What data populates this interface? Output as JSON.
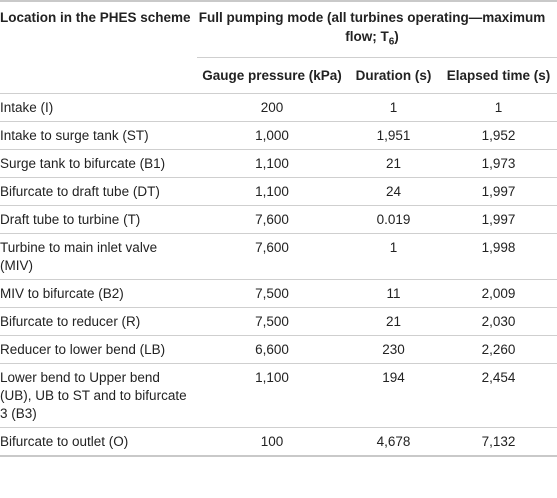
{
  "table": {
    "header": {
      "location": "Location in the PHES scheme",
      "mode_main": "Full pumping mode (all turbines operating—maximum flow; T",
      "mode_sub": "6",
      "mode_end": ")",
      "gauge": "Gauge pressure (kPa)",
      "duration": "Duration (s)",
      "elapsed": "Elapsed time (s)"
    },
    "rows": [
      {
        "location": "Intake (I)",
        "gauge": "200",
        "duration": "1",
        "elapsed": "1"
      },
      {
        "location": "Intake to surge tank (ST)",
        "gauge": "1,000",
        "duration": "1,951",
        "elapsed": "1,952"
      },
      {
        "location": "Surge tank to bifurcate (B1)",
        "gauge": "1,100",
        "duration": "21",
        "elapsed": "1,973"
      },
      {
        "location": "Bifurcate to draft tube (DT)",
        "gauge": "1,100",
        "duration": "24",
        "elapsed": "1,997"
      },
      {
        "location": "Draft tube to turbine (T)",
        "gauge": "7,600",
        "duration": "0.019",
        "elapsed": "1,997"
      },
      {
        "location": "Turbine to main inlet valve (MIV)",
        "gauge": "7,600",
        "duration": "1",
        "elapsed": "1,998"
      },
      {
        "location": "MIV to bifurcate (B2)",
        "gauge": "7,500",
        "duration": "11",
        "elapsed": "2,009"
      },
      {
        "location": "Bifurcate to reducer (R)",
        "gauge": "7,500",
        "duration": "21",
        "elapsed": "2,030"
      },
      {
        "location": "Reducer to lower bend (LB)",
        "gauge": "6,600",
        "duration": "230",
        "elapsed": "2,260"
      },
      {
        "location": "Lower bend to Upper bend (UB), UB to ST and to bifurcate 3 (B3)",
        "gauge": "1,100",
        "duration": "194",
        "elapsed": "2,454"
      },
      {
        "location": "Bifurcate to outlet (O)",
        "gauge": "100",
        "duration": "4,678",
        "elapsed": "7,132"
      }
    ]
  }
}
